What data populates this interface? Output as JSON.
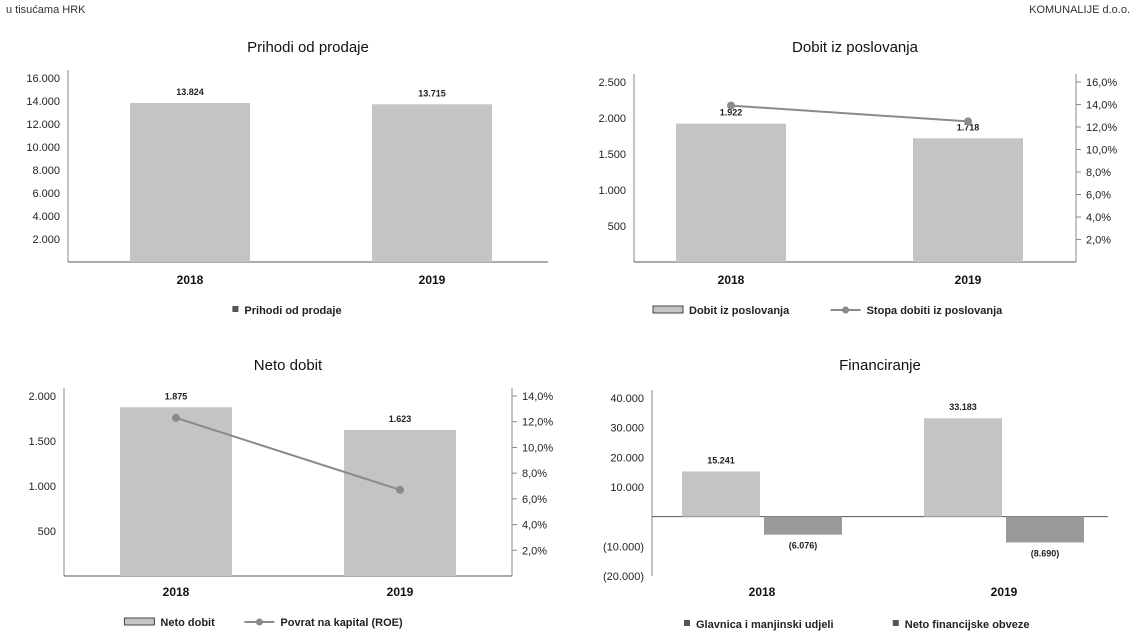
{
  "header": {
    "left": "u tisućama HRK",
    "right": "KOMUNALIJE d.o.o."
  },
  "chart_data": [
    {
      "id": "prihodi",
      "type": "bar",
      "title": "Prihodi od prodaje",
      "categories": [
        "2018",
        "2019"
      ],
      "series": [
        {
          "name": "Prihodi od prodaje",
          "values": [
            13824,
            13715
          ],
          "labels": [
            "13.824",
            "13.715"
          ],
          "color": "#c4c4c4"
        }
      ],
      "ylim": [
        0,
        16000
      ],
      "yticks": [
        "16.000",
        "14.000",
        "12.000",
        "10.000",
        "8.000",
        "6.000",
        "4.000",
        "2.000"
      ],
      "grid": false,
      "legend_position": "bottom"
    },
    {
      "id": "dobit",
      "type": "bar",
      "title": "Dobit iz poslovanja",
      "categories": [
        "2018",
        "2019"
      ],
      "series": [
        {
          "name": "Dobit iz poslovanja",
          "values": [
            1922,
            1718
          ],
          "labels": [
            "1.922",
            "1.718"
          ],
          "color": "#c4c4c4"
        },
        {
          "name": "Stopa dobiti iz poslovanja",
          "type": "line",
          "axis": "right",
          "values": [
            13.9,
            12.5
          ],
          "color": "#8a8a8a"
        }
      ],
      "ylim": [
        0,
        2500
      ],
      "yticks": [
        "2.500",
        "2.000",
        "1.500",
        "1.000",
        "500"
      ],
      "y2lim": [
        0,
        16
      ],
      "y2ticks": [
        "16,0%",
        "14,0%",
        "12,0%",
        "10,0%",
        "8,0%",
        "6,0%",
        "4,0%",
        "2,0%"
      ],
      "grid": false,
      "legend_position": "bottom"
    },
    {
      "id": "neto",
      "type": "bar",
      "title": "Neto dobit",
      "categories": [
        "2018",
        "2019"
      ],
      "series": [
        {
          "name": "Neto dobit",
          "values": [
            1875,
            1623
          ],
          "labels": [
            "1.875",
            "1.623"
          ],
          "color": "#c4c4c4"
        },
        {
          "name": "Povrat na kapital (ROE)",
          "type": "line",
          "axis": "right",
          "values": [
            12.3,
            6.7
          ],
          "color": "#8a8a8a"
        }
      ],
      "ylim": [
        0,
        2000
      ],
      "yticks": [
        "2.000",
        "1.500",
        "1.000",
        "500"
      ],
      "y2lim": [
        0,
        14
      ],
      "y2ticks": [
        "14,0%",
        "12,0%",
        "10,0%",
        "8,0%",
        "6,0%",
        "4,0%",
        "2,0%"
      ],
      "grid": false,
      "legend_position": "bottom"
    },
    {
      "id": "financiranje",
      "type": "bar",
      "title": "Financiranje",
      "categories": [
        "2018",
        "2019"
      ],
      "series": [
        {
          "name": "Glavnica i manjinski udjeli",
          "values": [
            15241,
            33183
          ],
          "labels": [
            "15.241",
            "33.183"
          ],
          "color": "#c4c4c4"
        },
        {
          "name": "Neto financijske obveze",
          "values": [
            -6076,
            -8690
          ],
          "labels": [
            "(6.076)",
            "(8.690)"
          ],
          "color": "#9a9a9a"
        }
      ],
      "ylim": [
        -20000,
        40000
      ],
      "yticks": [
        "40.000",
        "30.000",
        "20.000",
        "10.000",
        "(10.000)",
        "(20.000)"
      ],
      "grid": false,
      "legend_position": "bottom"
    }
  ]
}
